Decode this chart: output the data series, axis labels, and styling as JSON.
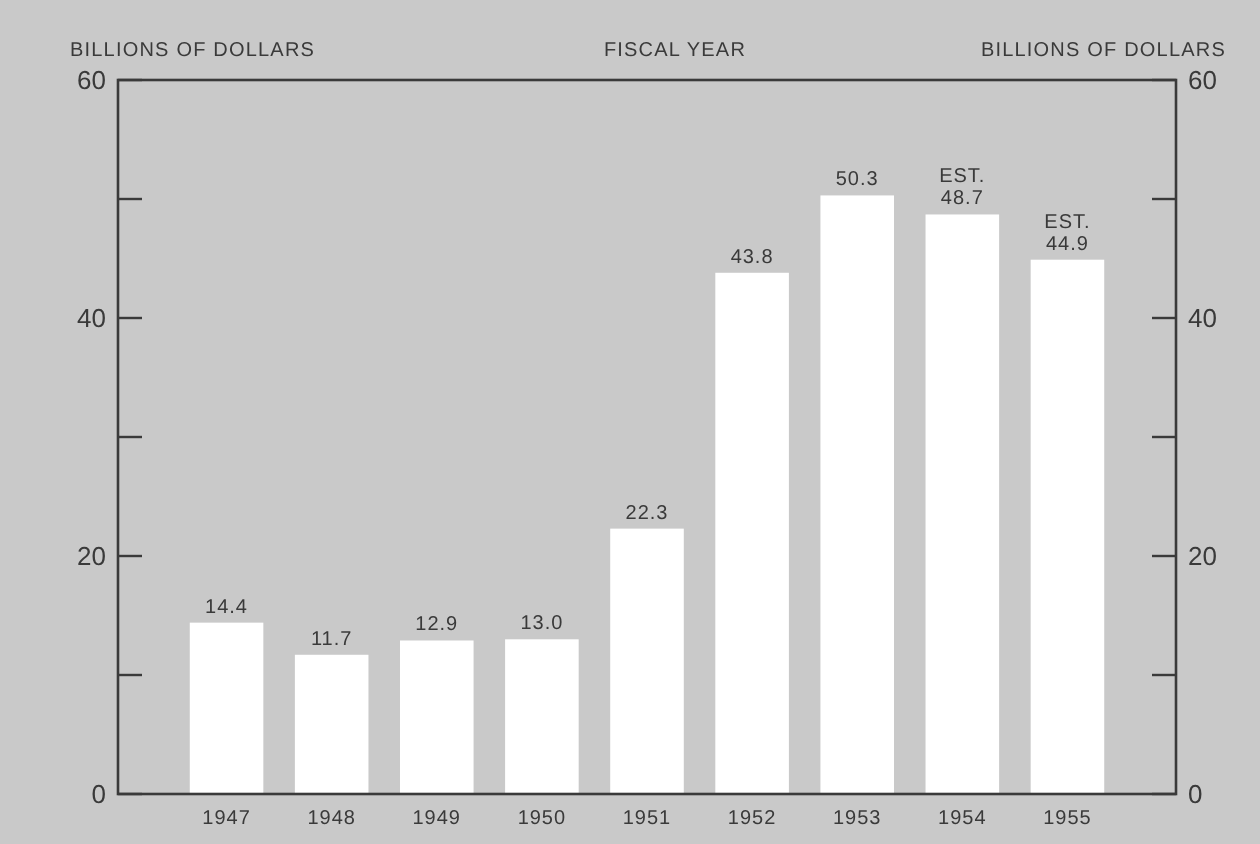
{
  "chart_data": {
    "type": "bar",
    "title": "FISCAL YEAR",
    "ylabel": "BILLIONS OF DOLLARS",
    "y2label": "BILLIONS OF DOLLARS",
    "categories": [
      "1947",
      "1948",
      "1949",
      "1950",
      "1951",
      "1952",
      "1953",
      "1954",
      "1955"
    ],
    "values": [
      14.4,
      11.7,
      12.9,
      13.0,
      22.3,
      43.8,
      50.3,
      48.7,
      44.9
    ],
    "value_labels": [
      "14.4",
      "11.7",
      "12.9",
      "13.0",
      "22.3",
      "43.8",
      "50.3",
      "EST.\n48.7",
      "EST.\n44.9"
    ],
    "color": "#ffffff",
    "ylim": [
      0,
      60
    ],
    "yticks": [
      0,
      {
        "value": 10,
        "label": null
      },
      20,
      {
        "value": 30,
        "label": null
      },
      40,
      {
        "value": 50,
        "label": null
      },
      60
    ],
    "y2lim": [
      0,
      60
    ],
    "y2ticks": [
      0,
      {
        "value": 10,
        "label": null
      },
      20,
      {
        "value": 30,
        "label": null
      },
      40,
      {
        "value": 50,
        "label": null
      },
      60
    ],
    "grid": false
  }
}
